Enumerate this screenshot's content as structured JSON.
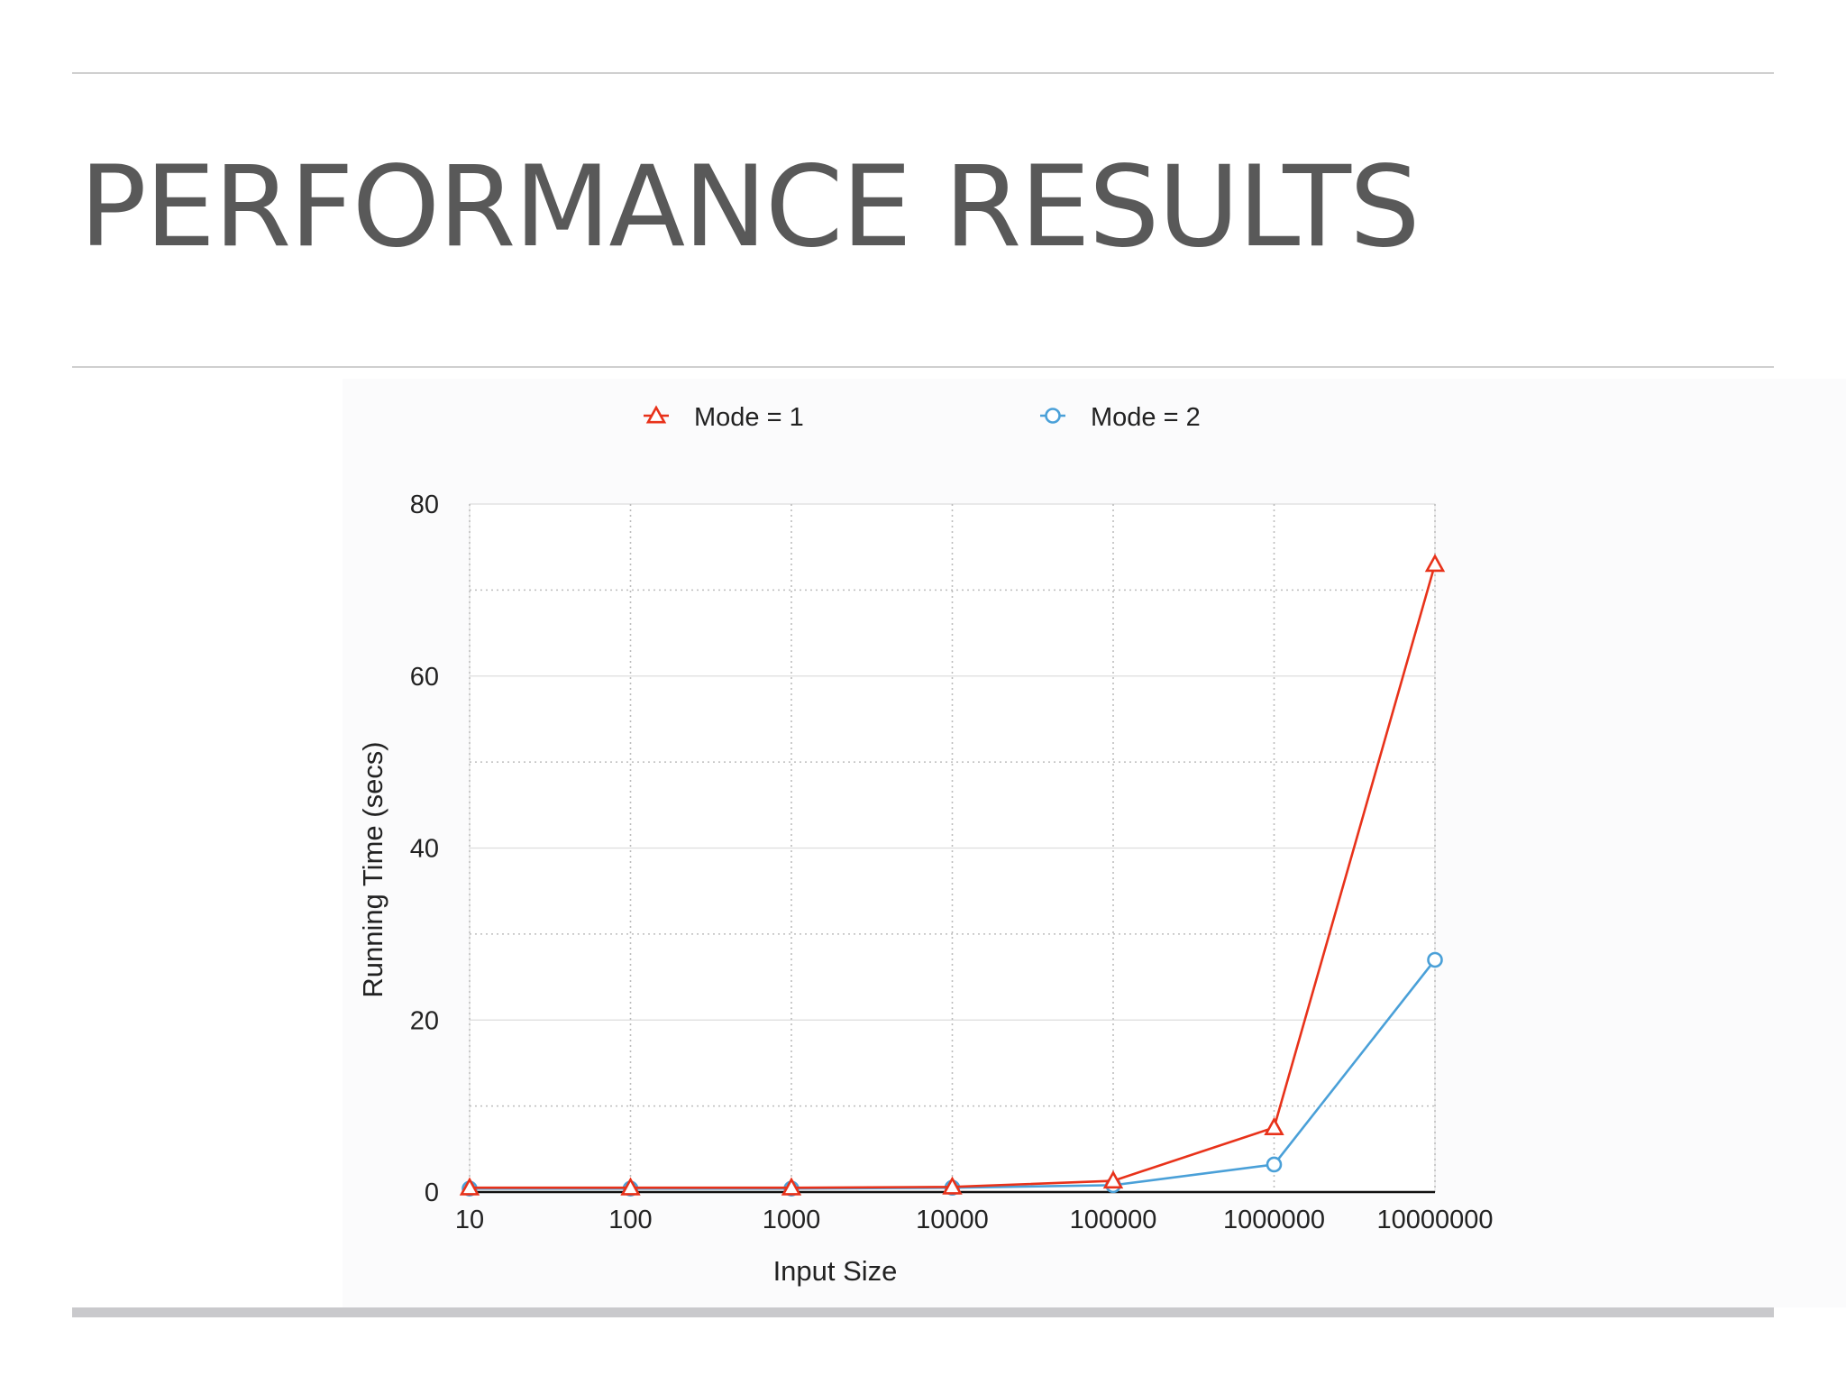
{
  "slide": {
    "title": "PERFORMANCE RESULTS"
  },
  "colors": {
    "series1": "#e8321a",
    "series2": "#4aa0d8",
    "text": "#222222",
    "title": "#595959",
    "grid": "#cccccc",
    "axis": "#111111"
  },
  "chart_data": {
    "type": "line",
    "title": "",
    "xlabel": "Input Size",
    "ylabel": "Running Time (secs)",
    "categories": [
      "10",
      "100",
      "1000",
      "10000",
      "100000",
      "1000000",
      "10000000"
    ],
    "ylim": [
      0,
      80
    ],
    "yticks": [
      "0",
      "20",
      "40",
      "60",
      "80"
    ],
    "grid": true,
    "legend_position": "top",
    "series": [
      {
        "name": "Mode = 1",
        "marker": "triangle",
        "color": "#e8321a",
        "values": [
          0.5,
          0.5,
          0.5,
          0.6,
          1.3,
          7.5,
          73
        ]
      },
      {
        "name": "Mode = 2",
        "marker": "circle",
        "color": "#4aa0d8",
        "values": [
          0.4,
          0.4,
          0.4,
          0.5,
          0.8,
          3.2,
          27
        ]
      }
    ]
  }
}
